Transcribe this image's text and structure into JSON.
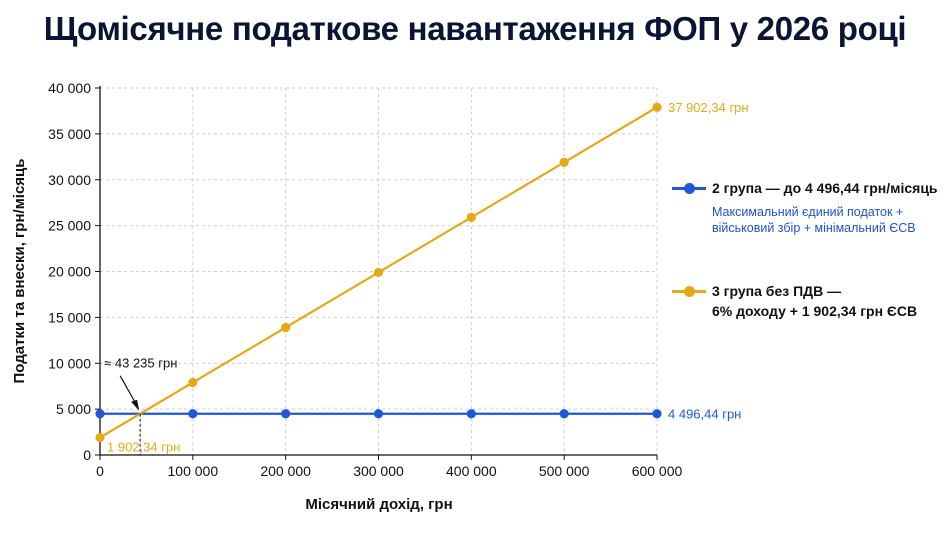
{
  "title": "Щомісячне податкове навантаження ФОП у 2026 році",
  "chart_data": {
    "type": "line",
    "xlabel": "Місячний дохід, грн",
    "ylabel": "Податки та внески, грн/місяць",
    "xlim": [
      0,
      600000
    ],
    "ylim": [
      0,
      40000
    ],
    "x_ticks": [
      "0",
      "100 000",
      "200 000",
      "300 000",
      "400 000",
      "500 000",
      "600 000"
    ],
    "y_ticks": [
      "0",
      "5 000",
      "10 000",
      "15 000",
      "20 000",
      "25 000",
      "30 000",
      "35 000",
      "40 000"
    ],
    "grid": true,
    "legend_position": "right",
    "x": [
      0,
      100000,
      200000,
      300000,
      400000,
      500000,
      600000
    ],
    "series": [
      {
        "name": "2 група — до 4 496,44 грн/місяць",
        "note": "Максимальний єдиний податок + військовий збір + мінімальний ЄСВ",
        "color": "#1f57d6",
        "values": [
          4496.44,
          4496.44,
          4496.44,
          4496.44,
          4496.44,
          4496.44,
          4496.44
        ],
        "end_label": "4 496,44 грн"
      },
      {
        "name": "3 група без ПДВ — 6% доходу + 1 902,34 грн ЄСВ",
        "color": "#e6a817",
        "values": [
          1902.34,
          7902.34,
          13902.34,
          19902.34,
          25902.34,
          31902.34,
          37902.34
        ],
        "start_label": "1 902,34 грн",
        "end_label": "37 902,34 грн"
      }
    ],
    "annotations": [
      {
        "text": "≈ 43 235 грн",
        "x": 43235,
        "y": 4496.44
      }
    ]
  },
  "legend": {
    "item1_line1": "2 група — до 4 496,44 грн/місяць",
    "item1_note_1": "Максимальний єдиний податок +",
    "item1_note_2": "військовий збір + мінімальний ЄСВ",
    "item2_line1": "3 група без ПДВ —",
    "item2_line2": "6% доходу + 1 902,34 грн ЄСВ"
  }
}
